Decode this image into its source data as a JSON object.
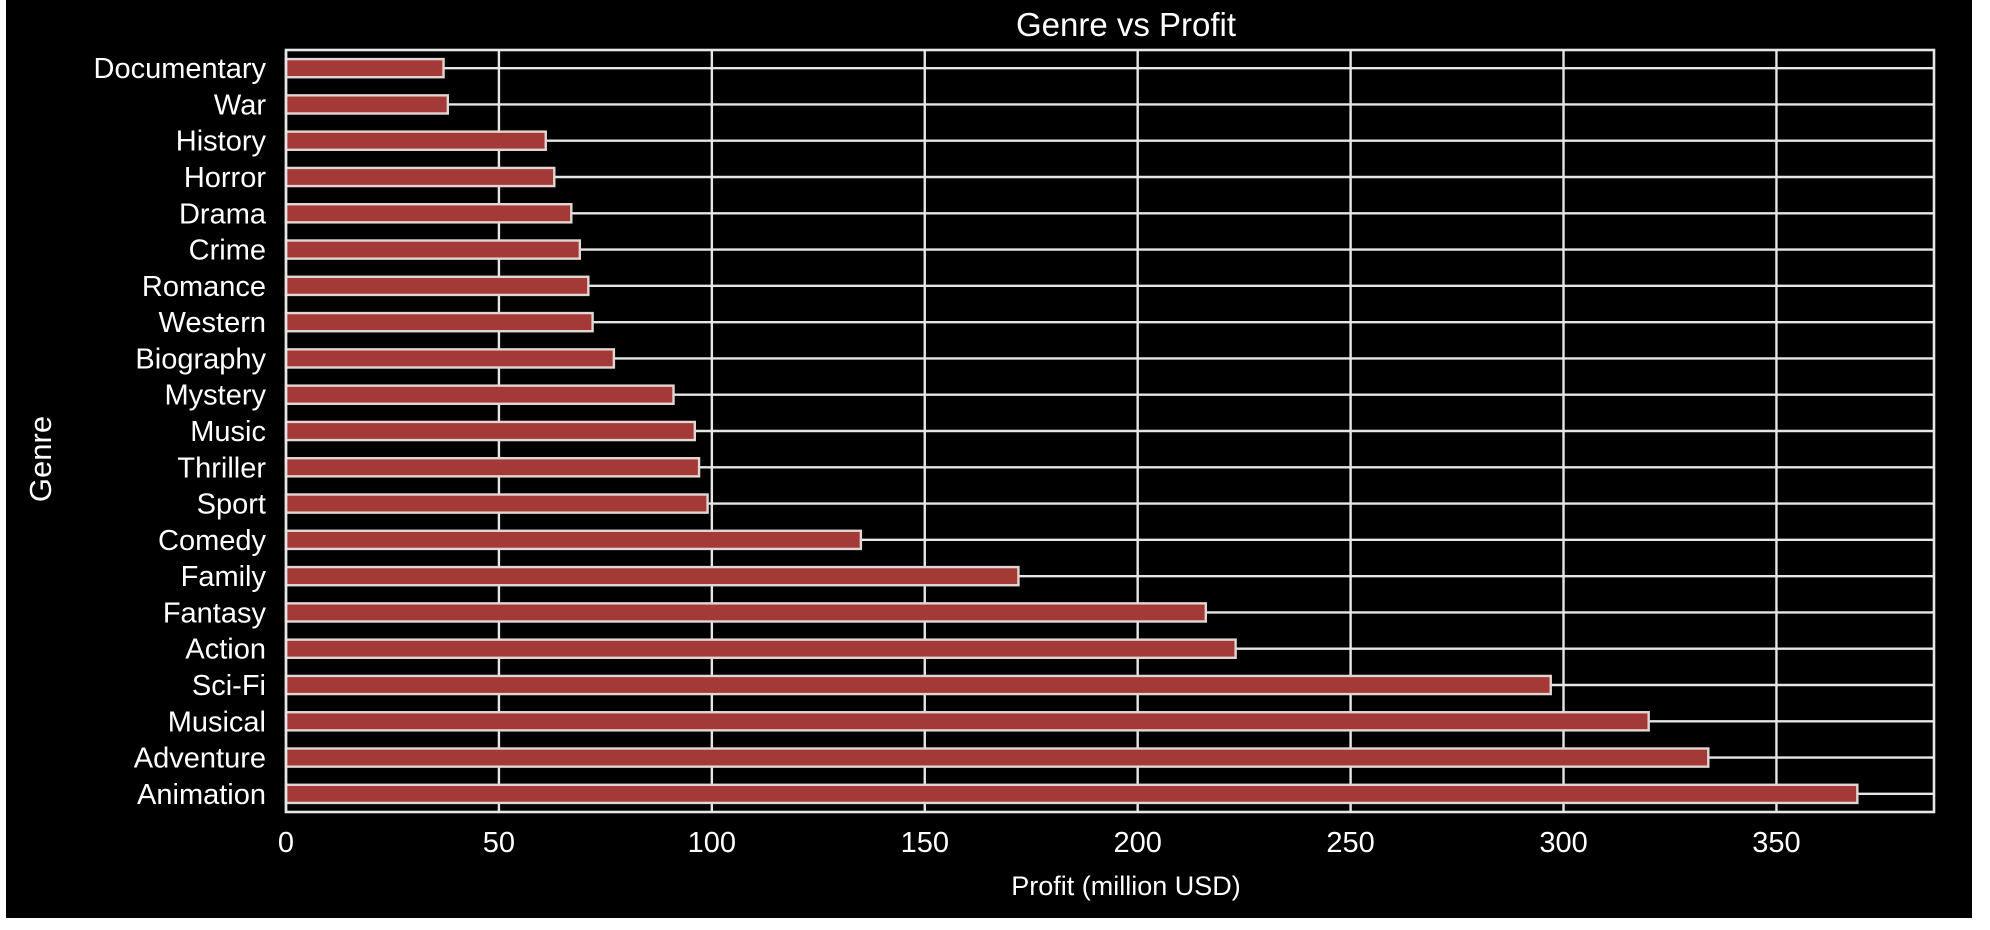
{
  "chart_data": {
    "type": "bar",
    "orientation": "horizontal",
    "title": "Genre vs Profit",
    "xlabel": "Profit (million USD)",
    "ylabel": "Genre",
    "xlim": [
      0,
      387
    ],
    "xticks": [
      0,
      50,
      100,
      150,
      200,
      250,
      300,
      350
    ],
    "grid": true,
    "categories": [
      "Documentary",
      "War",
      "History",
      "Horror",
      "Drama",
      "Crime",
      "Romance",
      "Western",
      "Biography",
      "Mystery",
      "Music",
      "Thriller",
      "Sport",
      "Comedy",
      "Family",
      "Fantasy",
      "Action",
      "Sci-Fi",
      "Musical",
      "Adventure",
      "Animation"
    ],
    "values": [
      37,
      38,
      61,
      63,
      67,
      69,
      71,
      72,
      77,
      91,
      96,
      97,
      99,
      135,
      172,
      216,
      223,
      297,
      320,
      334,
      369
    ],
    "colors": {
      "bar_fill": "#a33a37",
      "bar_edge": "#e2d6d2",
      "grid": "#e6e6e6",
      "axes_border": "#e6e6e6",
      "background": "#000000",
      "text": "#ffffff"
    }
  }
}
